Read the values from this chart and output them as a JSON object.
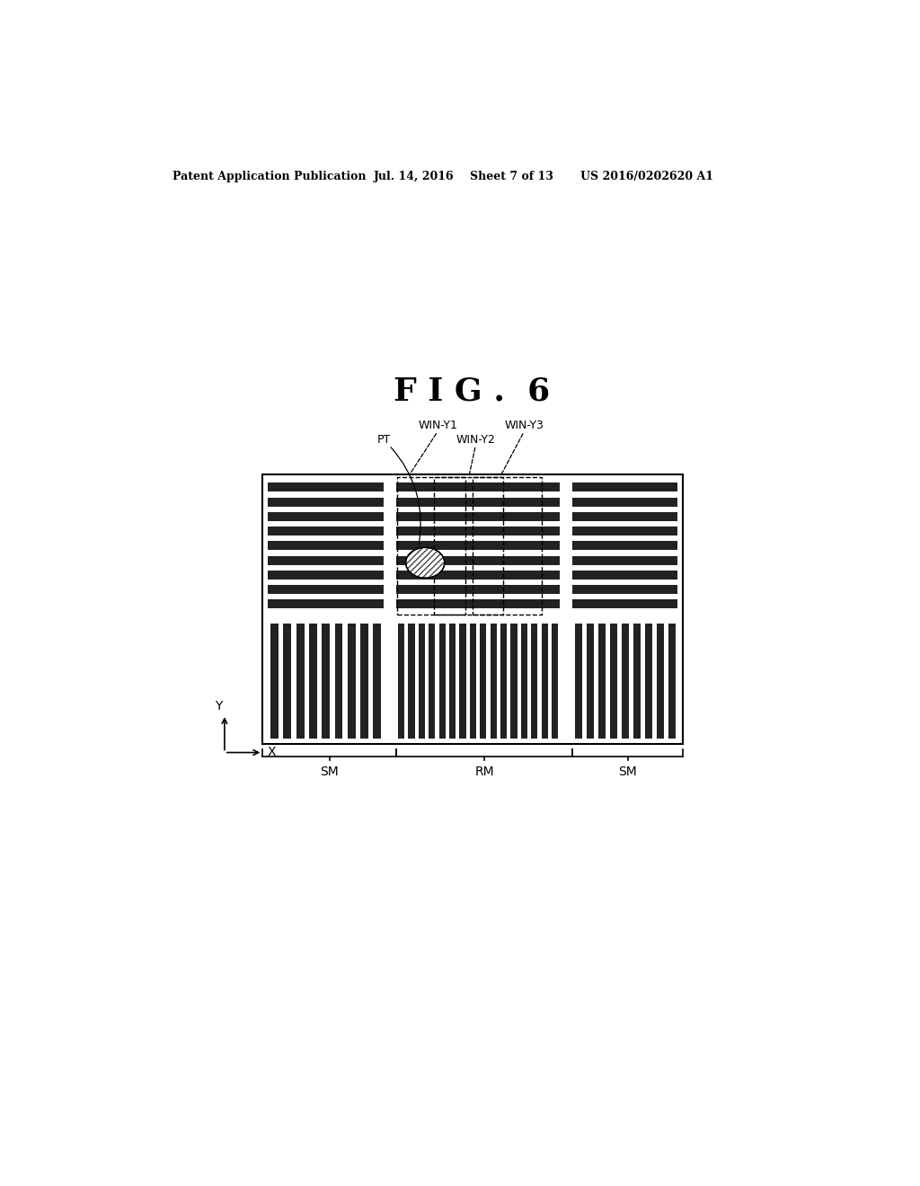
{
  "bg_color": "#ffffff",
  "header_text": "Patent Application Publication",
  "header_date": "Jul. 14, 2016",
  "header_sheet": "Sheet 7 of 13",
  "header_patent": "US 2016/0202620 A1",
  "fig_title": "F I G .  6",
  "labels": {
    "win_y1": "WIN-Y1",
    "win_y2": "WIN-Y2",
    "win_y3": "WIN-Y3",
    "pt": "PT",
    "sm_left": "SM",
    "sm_right": "SM",
    "rm": "RM",
    "x_axis": "X",
    "y_axis": "Y"
  },
  "stripe_color": "#222222",
  "stripe_bg": "#ffffff",
  "outer_bg": "#ffffff"
}
